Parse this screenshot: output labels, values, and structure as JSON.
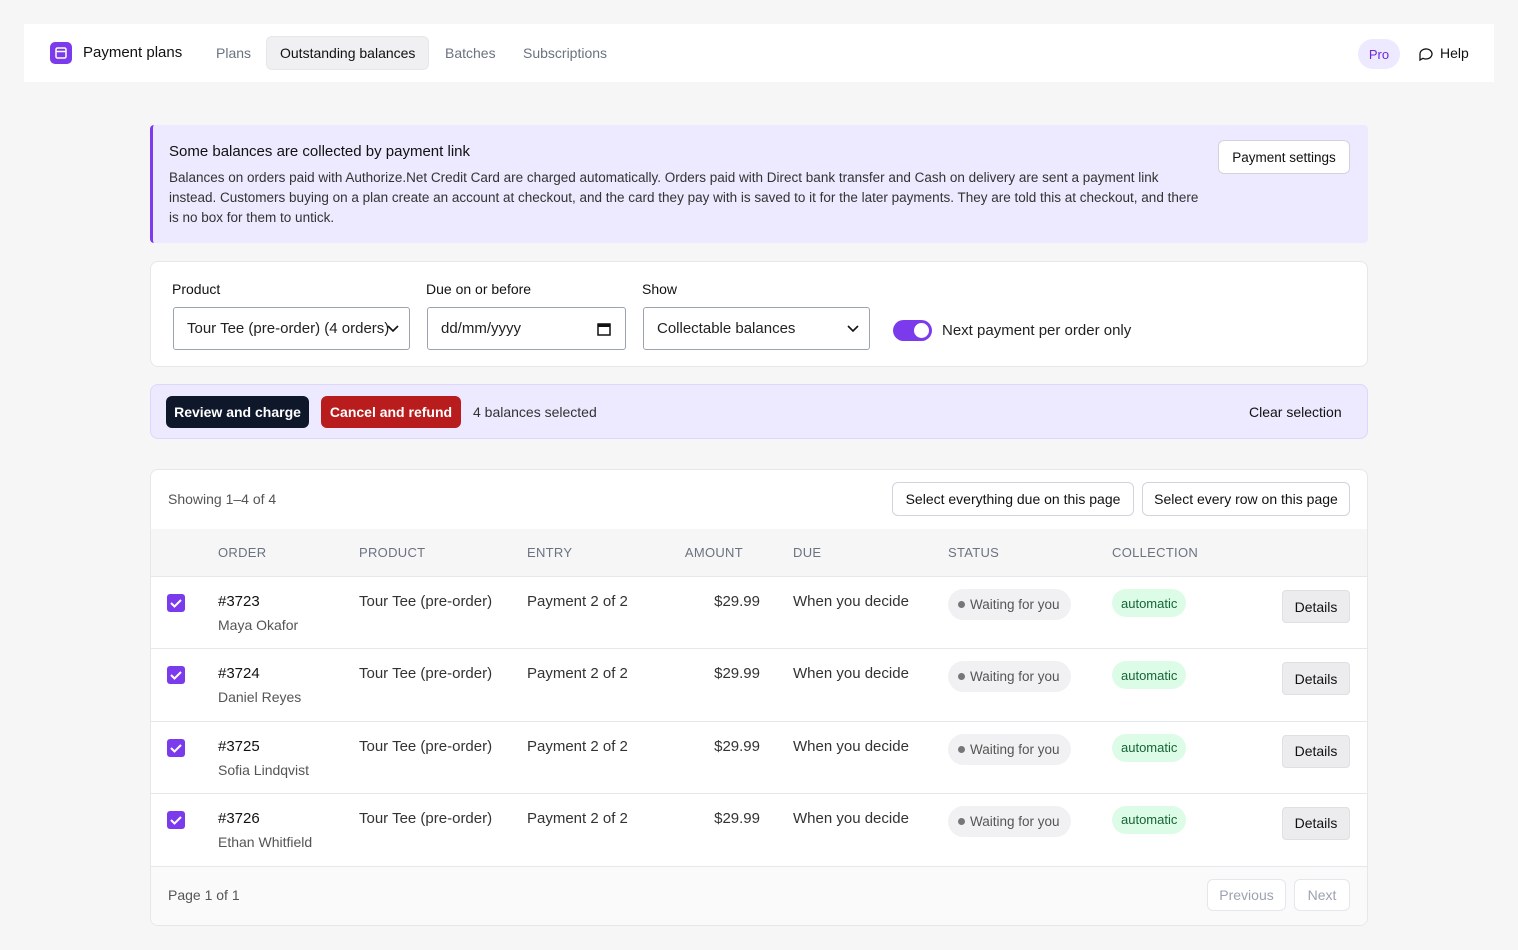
{
  "header": {
    "title": "Payment plans",
    "tabs": [
      "Plans",
      "Outstanding balances",
      "Batches",
      "Subscriptions"
    ],
    "badge": "Pro",
    "help": "Help"
  },
  "notice": {
    "title": "Some balances are collected by payment link",
    "body": "Balances on orders paid with Authorize.Net Credit Card are charged automatically. Orders paid with Direct bank transfer and Cash on delivery are sent a payment link instead. Customers buying on a plan create an account at checkout, and the card they pay with is saved to it for the later payments. They are told this at checkout, and there is no box for them to untick.",
    "button": "Payment settings"
  },
  "filters": {
    "product": {
      "label": "Product",
      "value": "Tour Tee (pre-order) (4 orders)"
    },
    "due": {
      "label": "Due on or before",
      "placeholder": "dd/mm/yyyy"
    },
    "show": {
      "label": "Show",
      "value": "Collectable balances"
    },
    "toggle": {
      "label": "Next payment per order only"
    }
  },
  "actions": {
    "review": "Review and charge",
    "cancel": "Cancel and refund",
    "selected": "4 balances selected",
    "clear": "Clear selection"
  },
  "table": {
    "showing": "Showing 1–4 of 4",
    "select_due": "Select everything due on this page",
    "select_all": "Select every row on this page",
    "columns": [
      "ORDER",
      "PRODUCT",
      "ENTRY",
      "AMOUNT",
      "DUE",
      "STATUS",
      "COLLECTION"
    ],
    "rows": [
      {
        "order": "#3723",
        "customer": "Maya Okafor",
        "product": "Tour Tee (pre-order)",
        "entry": "Payment 2 of 2",
        "amount": "$29.99",
        "due": "When you decide",
        "status": "Waiting for you",
        "collection": "automatic",
        "action": "Details"
      },
      {
        "order": "#3724",
        "customer": "Daniel Reyes",
        "product": "Tour Tee (pre-order)",
        "entry": "Payment 2 of 2",
        "amount": "$29.99",
        "due": "When you decide",
        "status": "Waiting for you",
        "collection": "automatic",
        "action": "Details"
      },
      {
        "order": "#3725",
        "customer": "Sofia Lindqvist",
        "product": "Tour Tee (pre-order)",
        "entry": "Payment 2 of 2",
        "amount": "$29.99",
        "due": "When you decide",
        "status": "Waiting for you",
        "collection": "automatic",
        "action": "Details"
      },
      {
        "order": "#3726",
        "customer": "Ethan Whitfield",
        "product": "Tour Tee (pre-order)",
        "entry": "Payment 2 of 2",
        "amount": "$29.99",
        "due": "When you decide",
        "status": "Waiting for you",
        "collection": "automatic",
        "action": "Details"
      }
    ],
    "page": "Page 1 of 1",
    "previous": "Previous",
    "next": "Next"
  }
}
